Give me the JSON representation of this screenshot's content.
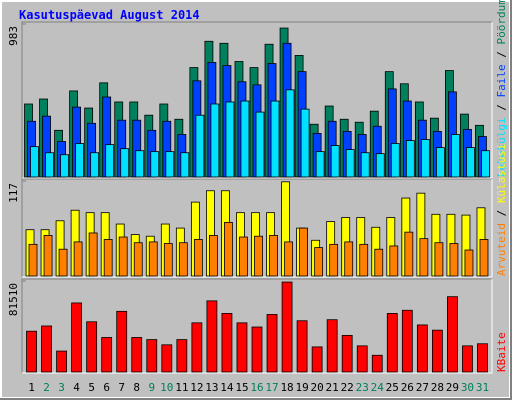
{
  "chart_data": [
    {
      "type": "bar",
      "title": "Kasutuspäevad August 2014",
      "ylim": [
        0,
        983
      ],
      "yticks": [
        983
      ],
      "legend_separator": " / ",
      "series": [
        {
          "name": "Pöördumisi",
          "color": "#00805c",
          "values": [
            469,
            501,
            300,
            553,
            443,
            605,
            482,
            482,
            397,
            469,
            371,
            703,
            872,
            859,
            742,
            703,
            853,
            957,
            781,
            339,
            456,
            371,
            352,
            423,
            677,
            599,
            482,
            378,
            684,
            404,
            332
          ]
        },
        {
          "name": "Faile",
          "color": "#0040ff",
          "values": [
            358,
            391,
            228,
            449,
            345,
            514,
            365,
            365,
            300,
            358,
            273,
            618,
            736,
            716,
            612,
            592,
            729,
            859,
            677,
            280,
            358,
            293,
            273,
            326,
            566,
            488,
            365,
            293,
            547,
            306,
            260
          ]
        },
        {
          "name": "Lehekülgi",
          "color": "#00e0ff",
          "values": [
            195,
            156,
            143,
            215,
            156,
            208,
            182,
            169,
            163,
            163,
            156,
            397,
            469,
            482,
            488,
            417,
            488,
            560,
            436,
            163,
            202,
            176,
            156,
            150,
            215,
            234,
            241,
            189,
            273,
            189,
            169
          ]
        }
      ]
    },
    {
      "type": "bar",
      "ylim": [
        0,
        117
      ],
      "yticks": [
        117
      ],
      "legend_separator": " / ",
      "series": [
        {
          "name": "Külastusi",
          "color": "#ffff00",
          "values": [
            57,
            57,
            68,
            81,
            78,
            78,
            64,
            51,
            49,
            64,
            59,
            91,
            105,
            105,
            78,
            78,
            78,
            116,
            59,
            44,
            67,
            72,
            72,
            60,
            72,
            96,
            102,
            76,
            76,
            75,
            84
          ]
        },
        {
          "name": "Arvuteid",
          "color": "#ff8000",
          "values": [
            39,
            50,
            33,
            42,
            53,
            45,
            48,
            41,
            42,
            40,
            41,
            45,
            50,
            66,
            48,
            49,
            50,
            42,
            59,
            35,
            39,
            42,
            39,
            33,
            37,
            54,
            46,
            41,
            40,
            32,
            45
          ]
        }
      ]
    },
    {
      "type": "bar",
      "ylim": [
        0,
        81510
      ],
      "yticks": [
        81510
      ],
      "categories": [
        "1",
        "2",
        "3",
        "4",
        "5",
        "6",
        "7",
        "8",
        "9",
        "10",
        "11",
        "12",
        "13",
        "14",
        "15",
        "16",
        "17",
        "18",
        "19",
        "20",
        "21",
        "22",
        "23",
        "24",
        "25",
        "26",
        "27",
        "28",
        "29",
        "30",
        "31"
      ],
      "category_colors": [
        "#000000",
        "#00805c",
        "#00805c",
        "#000000",
        "#000000",
        "#000000",
        "#000000",
        "#000000",
        "#00805c",
        "#00805c",
        "#000000",
        "#000000",
        "#000000",
        "#000000",
        "#000000",
        "#00805c",
        "#00805c",
        "#000000",
        "#000000",
        "#000000",
        "#000000",
        "#000000",
        "#00805c",
        "#00805c",
        "#000000",
        "#000000",
        "#000000",
        "#000000",
        "#000000",
        "#00805c",
        "#00805c"
      ],
      "series": [
        {
          "name": "KBaite",
          "color": "#ff0000",
          "values": [
            36543,
            41228,
            18739,
            61843,
            44976,
            30920,
            54346,
            30920,
            29046,
            24362,
            29046,
            44039,
            63717,
            52472,
            44039,
            40291,
            51535,
            80573,
            45913,
            22488,
            46850,
            32794,
            23425,
            14992,
            52472,
            55283,
            42165,
            37480,
            67464,
            23425,
            25299
          ]
        }
      ]
    }
  ]
}
